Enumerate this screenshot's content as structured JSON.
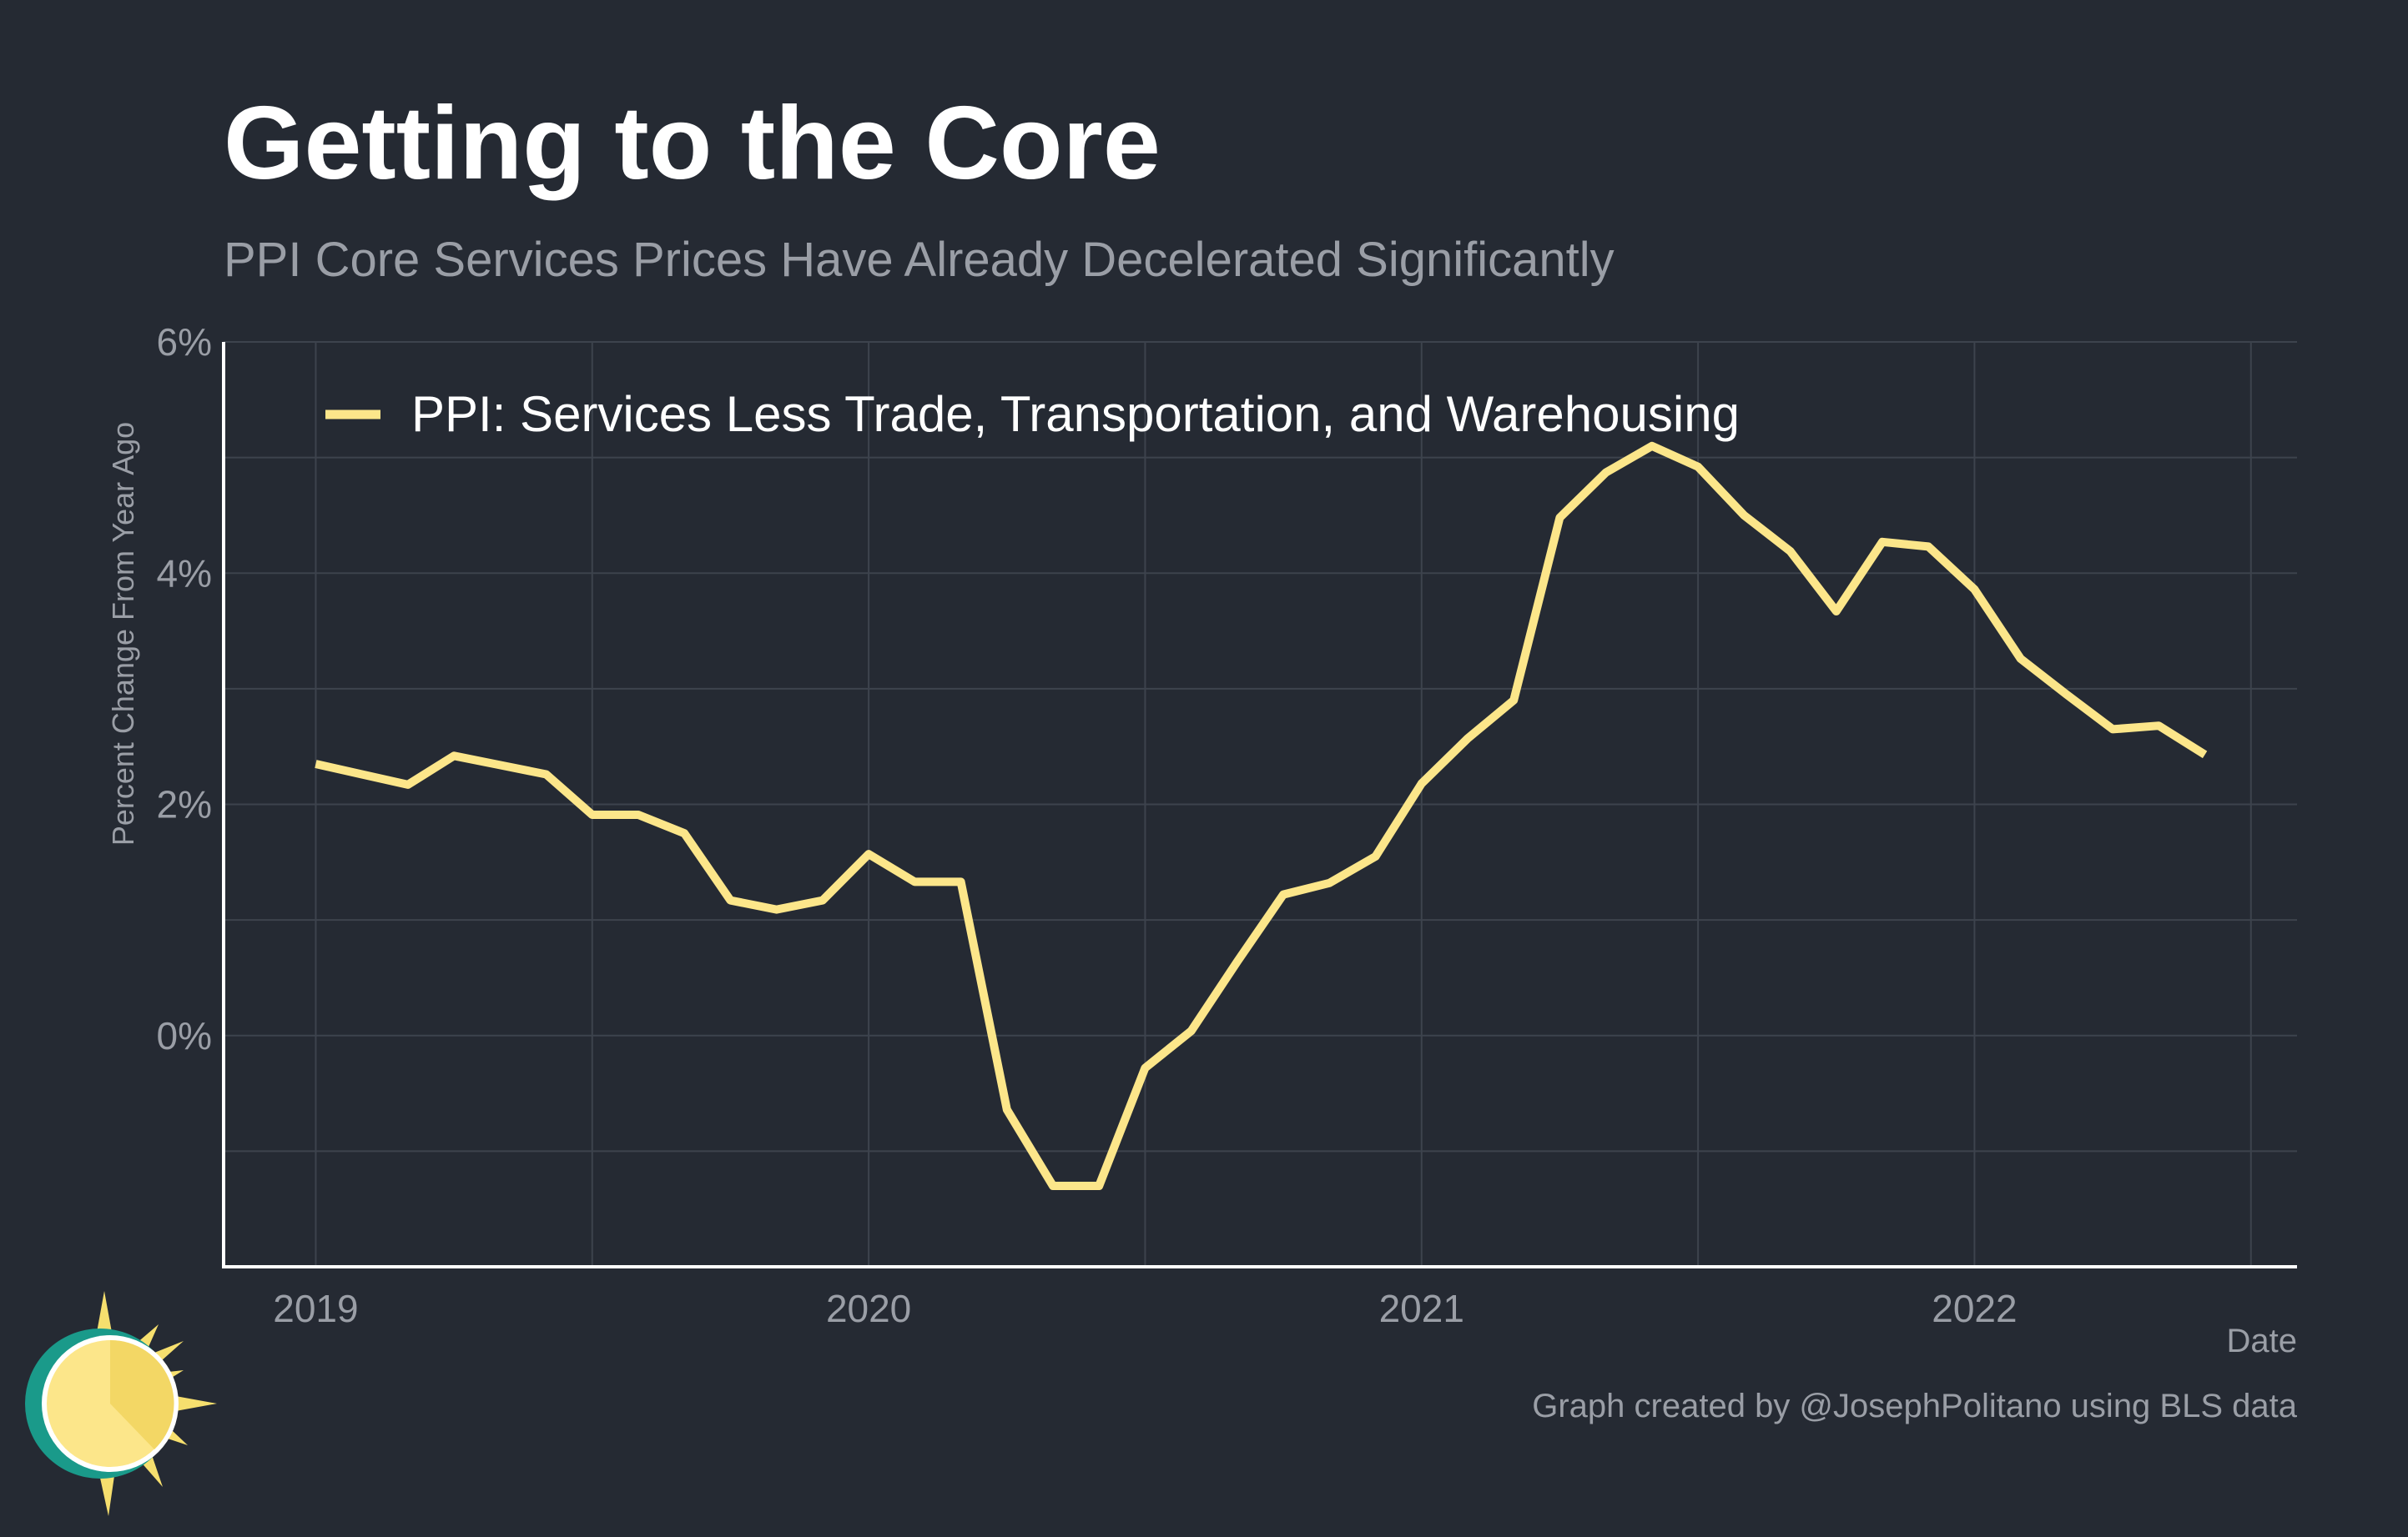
{
  "title": "Getting to the Core",
  "subtitle": "PPI Core Services Prices Have Already Decelerated Significantly",
  "caption": "Graph created by @JosephPolitano using BLS data",
  "colors": {
    "background": "#252a33",
    "series": "#fce68a",
    "grid": "#3d434d",
    "axis": "#ffffff",
    "text_muted": "#9a9ea6"
  },
  "chart_data": {
    "type": "line",
    "title": "Getting to the Core",
    "subtitle": "PPI Core Services Prices Have Already Decelerated Significantly",
    "xlabel": "Date",
    "ylabel": "Percent Change From Year Ago",
    "ylim": [
      -2,
      6
    ],
    "xlim": [
      "2018-11",
      "2022-08"
    ],
    "yticks": [
      0,
      2,
      4,
      6
    ],
    "ytick_labels": [
      "0%",
      "2%",
      "4%",
      "6%"
    ],
    "xticks": [
      "2019-01",
      "2020-01",
      "2021-01",
      "2022-01"
    ],
    "xtick_labels": [
      "2019",
      "2020",
      "2021",
      "2022"
    ],
    "grid": true,
    "legend_position": "top-left",
    "series": [
      {
        "name": "PPI: Services Less Trade, Transportation, and Warehousing",
        "color": "#fce68a",
        "x": [
          "2019-01",
          "2019-02",
          "2019-03",
          "2019-04",
          "2019-05",
          "2019-06",
          "2019-07",
          "2019-08",
          "2019-09",
          "2019-10",
          "2019-11",
          "2019-12",
          "2020-01",
          "2020-02",
          "2020-03",
          "2020-04",
          "2020-05",
          "2020-06",
          "2020-07",
          "2020-08",
          "2020-09",
          "2020-10",
          "2020-11",
          "2020-12",
          "2021-01",
          "2021-02",
          "2021-03",
          "2021-04",
          "2021-05",
          "2021-06",
          "2021-07",
          "2021-08",
          "2021-09",
          "2021-10",
          "2021-11",
          "2021-12",
          "2022-01",
          "2022-02",
          "2022-03",
          "2022-04",
          "2022-05",
          "2022-06"
        ],
        "values": [
          2.35,
          2.26,
          2.17,
          2.42,
          2.34,
          2.26,
          1.91,
          1.91,
          1.75,
          1.17,
          1.09,
          1.17,
          1.57,
          1.33,
          1.33,
          -0.64,
          -1.3,
          -1.3,
          -0.28,
          0.04,
          0.64,
          1.22,
          1.32,
          1.55,
          2.18,
          2.57,
          2.9,
          4.48,
          4.87,
          5.1,
          4.92,
          4.5,
          4.19,
          3.67,
          4.27,
          4.23,
          3.86,
          3.26,
          2.95,
          2.65,
          2.68,
          2.43
        ]
      }
    ]
  }
}
